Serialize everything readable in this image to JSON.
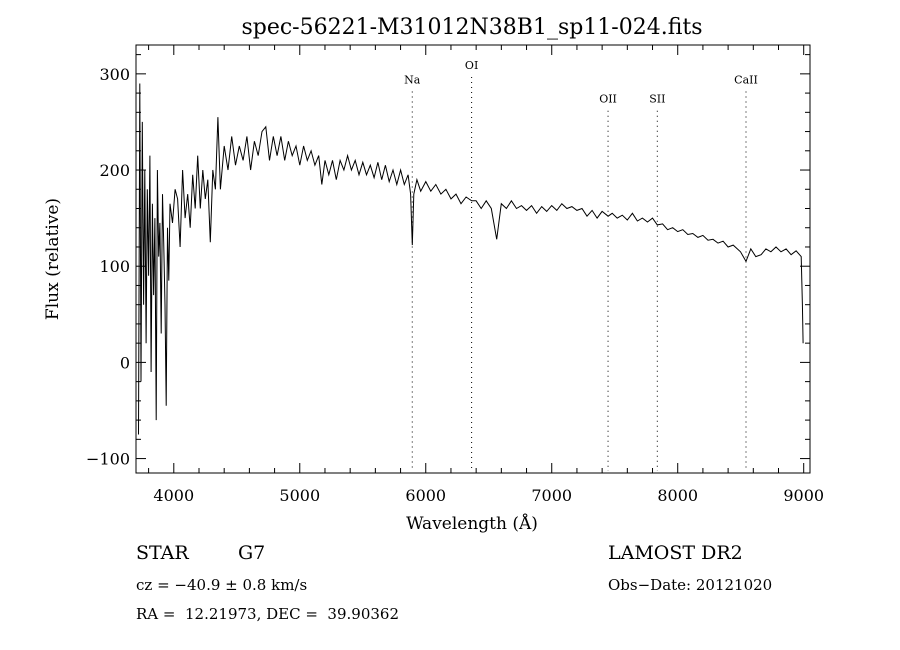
{
  "chart_data": {
    "type": "line",
    "title": "spec-56221-M31012N38B1_sp11-024.fits",
    "xlabel": "Wavelength (Å)",
    "ylabel": "Flux (relative)",
    "xlim": [
      3700,
      9050
    ],
    "ylim": [
      -115,
      330
    ],
    "xticks": [
      4000,
      5000,
      6000,
      7000,
      8000,
      9000
    ],
    "yticks": [
      -100,
      0,
      100,
      200,
      300
    ],
    "tick_labels": {
      "x": [
        "4000",
        "5000",
        "6000",
        "7000",
        "8000",
        "9000"
      ],
      "y": [
        "−100",
        "0",
        "100",
        "200",
        "300"
      ]
    },
    "grid": false,
    "line_color": "#000000",
    "lines": [
      {
        "label": "Na",
        "wavelength": 5893,
        "label_flux": 290
      },
      {
        "label": "OI",
        "wavelength": 6364,
        "label_flux": 305
      },
      {
        "label": "OII",
        "wavelength": 7447,
        "label_flux": 270
      },
      {
        "label": "SII",
        "wavelength": 7838,
        "label_flux": 270
      },
      {
        "label": "CaII",
        "wavelength": 8542,
        "label_flux": 290
      }
    ],
    "series": [
      {
        "points": [
          [
            3720,
            -75
          ],
          [
            3730,
            290
          ],
          [
            3740,
            -20
          ],
          [
            3750,
            250
          ],
          [
            3760,
            60
          ],
          [
            3770,
            200
          ],
          [
            3780,
            20
          ],
          [
            3790,
            180
          ],
          [
            3800,
            90
          ],
          [
            3810,
            215
          ],
          [
            3820,
            -10
          ],
          [
            3830,
            165
          ],
          [
            3840,
            70
          ],
          [
            3850,
            150
          ],
          [
            3860,
            -60
          ],
          [
            3870,
            200
          ],
          [
            3880,
            110
          ],
          [
            3890,
            145
          ],
          [
            3900,
            30
          ],
          [
            3910,
            175
          ],
          [
            3920,
            125
          ],
          [
            3930,
            60
          ],
          [
            3940,
            -45
          ],
          [
            3950,
            140
          ],
          [
            3960,
            85
          ],
          [
            3970,
            165
          ],
          [
            3990,
            145
          ],
          [
            4010,
            180
          ],
          [
            4030,
            170
          ],
          [
            4050,
            120
          ],
          [
            4070,
            200
          ],
          [
            4090,
            150
          ],
          [
            4110,
            175
          ],
          [
            4130,
            140
          ],
          [
            4150,
            195
          ],
          [
            4170,
            160
          ],
          [
            4190,
            215
          ],
          [
            4210,
            160
          ],
          [
            4230,
            200
          ],
          [
            4250,
            170
          ],
          [
            4270,
            190
          ],
          [
            4290,
            125
          ],
          [
            4310,
            200
          ],
          [
            4330,
            180
          ],
          [
            4350,
            255
          ],
          [
            4370,
            180
          ],
          [
            4400,
            225
          ],
          [
            4430,
            200
          ],
          [
            4460,
            235
          ],
          [
            4490,
            205
          ],
          [
            4520,
            225
          ],
          [
            4550,
            210
          ],
          [
            4580,
            235
          ],
          [
            4610,
            200
          ],
          [
            4640,
            230
          ],
          [
            4670,
            215
          ],
          [
            4700,
            240
          ],
          [
            4730,
            245
          ],
          [
            4760,
            210
          ],
          [
            4790,
            235
          ],
          [
            4820,
            215
          ],
          [
            4850,
            235
          ],
          [
            4880,
            210
          ],
          [
            4910,
            230
          ],
          [
            4940,
            215
          ],
          [
            4970,
            225
          ],
          [
            5000,
            205
          ],
          [
            5030,
            225
          ],
          [
            5060,
            210
          ],
          [
            5090,
            220
          ],
          [
            5120,
            205
          ],
          [
            5150,
            215
          ],
          [
            5175,
            185
          ],
          [
            5200,
            210
          ],
          [
            5230,
            195
          ],
          [
            5260,
            210
          ],
          [
            5290,
            190
          ],
          [
            5320,
            210
          ],
          [
            5350,
            200
          ],
          [
            5380,
            215
          ],
          [
            5410,
            200
          ],
          [
            5440,
            210
          ],
          [
            5470,
            195
          ],
          [
            5500,
            208
          ],
          [
            5530,
            195
          ],
          [
            5560,
            205
          ],
          [
            5590,
            192
          ],
          [
            5620,
            208
          ],
          [
            5650,
            190
          ],
          [
            5680,
            205
          ],
          [
            5710,
            188
          ],
          [
            5740,
            200
          ],
          [
            5770,
            185
          ],
          [
            5800,
            200
          ],
          [
            5830,
            185
          ],
          [
            5860,
            195
          ],
          [
            5880,
            175
          ],
          [
            5893,
            122
          ],
          [
            5905,
            175
          ],
          [
            5930,
            190
          ],
          [
            5960,
            178
          ],
          [
            6000,
            188
          ],
          [
            6040,
            178
          ],
          [
            6080,
            185
          ],
          [
            6120,
            175
          ],
          [
            6160,
            180
          ],
          [
            6200,
            170
          ],
          [
            6240,
            175
          ],
          [
            6280,
            165
          ],
          [
            6320,
            172
          ],
          [
            6364,
            168
          ],
          [
            6400,
            168
          ],
          [
            6440,
            160
          ],
          [
            6480,
            168
          ],
          [
            6520,
            160
          ],
          [
            6563,
            128
          ],
          [
            6600,
            165
          ],
          [
            6640,
            160
          ],
          [
            6680,
            168
          ],
          [
            6720,
            160
          ],
          [
            6760,
            163
          ],
          [
            6800,
            158
          ],
          [
            6840,
            163
          ],
          [
            6880,
            155
          ],
          [
            6920,
            162
          ],
          [
            6960,
            157
          ],
          [
            7000,
            163
          ],
          [
            7040,
            158
          ],
          [
            7080,
            165
          ],
          [
            7120,
            160
          ],
          [
            7160,
            162
          ],
          [
            7200,
            158
          ],
          [
            7240,
            160
          ],
          [
            7280,
            152
          ],
          [
            7320,
            158
          ],
          [
            7360,
            150
          ],
          [
            7400,
            157
          ],
          [
            7447,
            152
          ],
          [
            7480,
            155
          ],
          [
            7520,
            150
          ],
          [
            7560,
            153
          ],
          [
            7600,
            148
          ],
          [
            7640,
            155
          ],
          [
            7680,
            147
          ],
          [
            7720,
            150
          ],
          [
            7760,
            146
          ],
          [
            7800,
            150
          ],
          [
            7838,
            143
          ],
          [
            7880,
            144
          ],
          [
            7920,
            138
          ],
          [
            7960,
            140
          ],
          [
            8000,
            136
          ],
          [
            8040,
            138
          ],
          [
            8080,
            133
          ],
          [
            8120,
            134
          ],
          [
            8160,
            130
          ],
          [
            8200,
            132
          ],
          [
            8240,
            127
          ],
          [
            8280,
            128
          ],
          [
            8320,
            124
          ],
          [
            8360,
            126
          ],
          [
            8400,
            120
          ],
          [
            8440,
            122
          ],
          [
            8498,
            115
          ],
          [
            8542,
            105
          ],
          [
            8580,
            118
          ],
          [
            8620,
            110
          ],
          [
            8662,
            112
          ],
          [
            8700,
            118
          ],
          [
            8740,
            115
          ],
          [
            8780,
            120
          ],
          [
            8820,
            115
          ],
          [
            8860,
            118
          ],
          [
            8900,
            112
          ],
          [
            8940,
            116
          ],
          [
            8980,
            110
          ],
          [
            8990,
            60
          ],
          [
            8995,
            20
          ]
        ]
      }
    ]
  },
  "info": {
    "object_class": "STAR",
    "subclass": "G7",
    "survey": "LAMOST DR2",
    "cz": "cz = −40.9 ± 0.8 km/s",
    "obs_date": "Obs−Date: 20121020",
    "coords": "RA =  12.21973, DEC =  39.90362"
  }
}
